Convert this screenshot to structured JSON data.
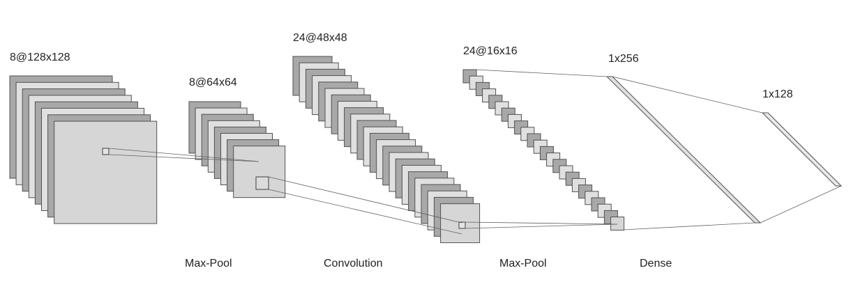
{
  "diagram": {
    "layers": [
      {
        "id": "input",
        "shape": "8@128x128"
      },
      {
        "id": "pool1",
        "shape": "8@64x64"
      },
      {
        "id": "conv",
        "shape": "24@48x48"
      },
      {
        "id": "pool2",
        "shape": "24@16x16"
      },
      {
        "id": "dense1",
        "shape": "1x256"
      },
      {
        "id": "dense2",
        "shape": "1x128"
      }
    ],
    "operations": [
      {
        "id": "op-max-pool-1",
        "label": "Max-Pool"
      },
      {
        "id": "op-convolution",
        "label": "Convolution"
      },
      {
        "id": "op-max-pool-2",
        "label": "Max-Pool"
      },
      {
        "id": "op-dense",
        "label": "Dense"
      }
    ],
    "colors": {
      "dark": "#a8a8a8",
      "light": "#e0e0e0",
      "front": "#d6d6d6",
      "stroke": "#505050",
      "line": "#606060"
    }
  }
}
